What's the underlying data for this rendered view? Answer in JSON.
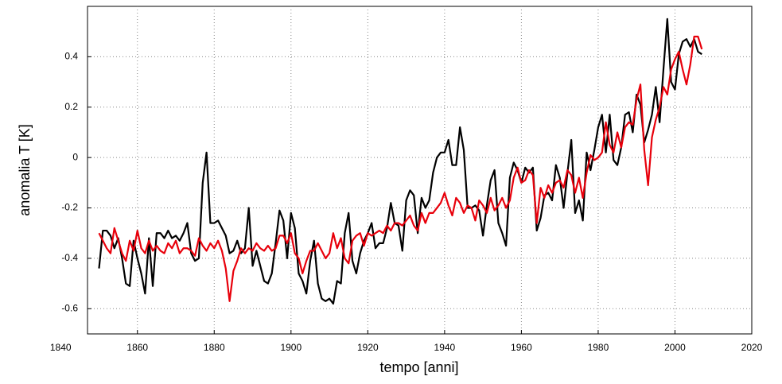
{
  "chart_data": {
    "type": "line",
    "xlabel": "tempo [anni]",
    "ylabel": "anomalia T [K]",
    "x": [
      1850,
      1851,
      1852,
      1853,
      1854,
      1855,
      1856,
      1857,
      1858,
      1859,
      1860,
      1861,
      1862,
      1863,
      1864,
      1865,
      1866,
      1867,
      1868,
      1869,
      1870,
      1871,
      1872,
      1873,
      1874,
      1875,
      1876,
      1877,
      1878,
      1879,
      1880,
      1881,
      1882,
      1883,
      1884,
      1885,
      1886,
      1887,
      1888,
      1889,
      1890,
      1891,
      1892,
      1893,
      1894,
      1895,
      1896,
      1897,
      1898,
      1899,
      1900,
      1901,
      1902,
      1903,
      1904,
      1905,
      1906,
      1907,
      1908,
      1909,
      1910,
      1911,
      1912,
      1913,
      1914,
      1915,
      1916,
      1917,
      1918,
      1919,
      1920,
      1921,
      1922,
      1923,
      1924,
      1925,
      1926,
      1927,
      1928,
      1929,
      1930,
      1931,
      1932,
      1933,
      1934,
      1935,
      1936,
      1937,
      1938,
      1939,
      1940,
      1941,
      1942,
      1943,
      1944,
      1945,
      1946,
      1947,
      1948,
      1949,
      1950,
      1951,
      1952,
      1953,
      1954,
      1955,
      1956,
      1957,
      1958,
      1959,
      1960,
      1961,
      1962,
      1963,
      1964,
      1965,
      1966,
      1967,
      1968,
      1969,
      1970,
      1971,
      1972,
      1973,
      1974,
      1975,
      1976,
      1977,
      1978,
      1979,
      1980,
      1981,
      1982,
      1983,
      1984,
      1985,
      1986,
      1987,
      1988,
      1989,
      1990,
      1991,
      1992,
      1993,
      1994,
      1995,
      1996,
      1997,
      1998,
      1999,
      2000,
      2001,
      2002,
      2003,
      2004,
      2005,
      2006,
      2007
    ],
    "series": [
      {
        "color": "#000000",
        "values": [
          -0.44,
          -0.29,
          -0.29,
          -0.31,
          -0.36,
          -0.32,
          -0.4,
          -0.5,
          -0.51,
          -0.33,
          -0.4,
          -0.46,
          -0.54,
          -0.32,
          -0.51,
          -0.3,
          -0.3,
          -0.32,
          -0.29,
          -0.32,
          -0.31,
          -0.33,
          -0.3,
          -0.26,
          -0.38,
          -0.41,
          -0.4,
          -0.1,
          0.02,
          -0.26,
          -0.26,
          -0.25,
          -0.28,
          -0.31,
          -0.38,
          -0.37,
          -0.33,
          -0.38,
          -0.36,
          -0.2,
          -0.43,
          -0.37,
          -0.43,
          -0.49,
          -0.5,
          -0.46,
          -0.34,
          -0.21,
          -0.25,
          -0.4,
          -0.22,
          -0.28,
          -0.46,
          -0.49,
          -0.54,
          -0.41,
          -0.33,
          -0.5,
          -0.56,
          -0.57,
          -0.56,
          -0.58,
          -0.49,
          -0.5,
          -0.3,
          -0.22,
          -0.41,
          -0.46,
          -0.38,
          -0.33,
          -0.3,
          -0.26,
          -0.36,
          -0.34,
          -0.34,
          -0.28,
          -0.18,
          -0.26,
          -0.27,
          -0.37,
          -0.17,
          -0.13,
          -0.15,
          -0.3,
          -0.16,
          -0.2,
          -0.17,
          -0.06,
          0.0,
          0.02,
          0.02,
          0.07,
          -0.03,
          -0.03,
          0.12,
          0.03,
          -0.2,
          -0.2,
          -0.19,
          -0.21,
          -0.31,
          -0.19,
          -0.09,
          -0.05,
          -0.26,
          -0.3,
          -0.35,
          -0.08,
          -0.02,
          -0.05,
          -0.1,
          -0.04,
          -0.06,
          -0.04,
          -0.29,
          -0.24,
          -0.15,
          -0.14,
          -0.17,
          -0.03,
          -0.08,
          -0.2,
          -0.06,
          0.07,
          -0.22,
          -0.17,
          -0.25,
          0.02,
          -0.05,
          0.03,
          0.12,
          0.17,
          0.02,
          0.17,
          -0.01,
          -0.03,
          0.04,
          0.17,
          0.18,
          0.1,
          0.25,
          0.21,
          0.06,
          0.11,
          0.17,
          0.28,
          0.14,
          0.35,
          0.55,
          0.3,
          0.27,
          0.41,
          0.46,
          0.47,
          0.44,
          0.47,
          0.42,
          0.41
        ]
      },
      {
        "color": "#e8000b",
        "values": [
          -0.3,
          -0.33,
          -0.36,
          -0.38,
          -0.28,
          -0.33,
          -0.38,
          -0.41,
          -0.33,
          -0.37,
          -0.29,
          -0.36,
          -0.38,
          -0.33,
          -0.37,
          -0.35,
          -0.37,
          -0.38,
          -0.34,
          -0.36,
          -0.33,
          -0.38,
          -0.36,
          -0.36,
          -0.37,
          -0.39,
          -0.32,
          -0.35,
          -0.37,
          -0.34,
          -0.36,
          -0.33,
          -0.37,
          -0.44,
          -0.57,
          -0.45,
          -0.41,
          -0.36,
          -0.38,
          -0.36,
          -0.37,
          -0.34,
          -0.36,
          -0.37,
          -0.35,
          -0.37,
          -0.36,
          -0.31,
          -0.31,
          -0.34,
          -0.3,
          -0.38,
          -0.4,
          -0.46,
          -0.41,
          -0.37,
          -0.37,
          -0.34,
          -0.37,
          -0.4,
          -0.38,
          -0.3,
          -0.36,
          -0.32,
          -0.4,
          -0.42,
          -0.33,
          -0.31,
          -0.3,
          -0.35,
          -0.3,
          -0.31,
          -0.3,
          -0.29,
          -0.3,
          -0.27,
          -0.29,
          -0.26,
          -0.26,
          -0.27,
          -0.25,
          -0.23,
          -0.27,
          -0.29,
          -0.22,
          -0.26,
          -0.22,
          -0.22,
          -0.2,
          -0.18,
          -0.14,
          -0.19,
          -0.23,
          -0.16,
          -0.18,
          -0.22,
          -0.19,
          -0.2,
          -0.25,
          -0.17,
          -0.19,
          -0.22,
          -0.16,
          -0.21,
          -0.19,
          -0.16,
          -0.2,
          -0.17,
          -0.08,
          -0.04,
          -0.1,
          -0.09,
          -0.05,
          -0.07,
          -0.26,
          -0.12,
          -0.16,
          -0.11,
          -0.14,
          -0.1,
          -0.09,
          -0.12,
          -0.05,
          -0.07,
          -0.14,
          -0.08,
          -0.16,
          -0.06,
          0.01,
          -0.01,
          0.0,
          0.02,
          0.14,
          0.05,
          0.02,
          0.1,
          0.04,
          0.12,
          0.14,
          0.13,
          0.23,
          0.29,
          0.03,
          -0.11,
          0.08,
          0.15,
          0.2,
          0.28,
          0.25,
          0.35,
          0.39,
          0.42,
          0.35,
          0.29,
          0.37,
          0.48,
          0.48,
          0.43
        ]
      }
    ],
    "xlim": [
      1847,
      2020
    ],
    "xticks": [
      1840,
      1860,
      1880,
      1900,
      1920,
      1940,
      1960,
      1980,
      2000,
      2020
    ],
    "ylim": [
      -0.7,
      0.6
    ],
    "yticks": [
      -0.6,
      -0.4,
      -0.2,
      0,
      0.2,
      0.4
    ],
    "grid": true
  }
}
